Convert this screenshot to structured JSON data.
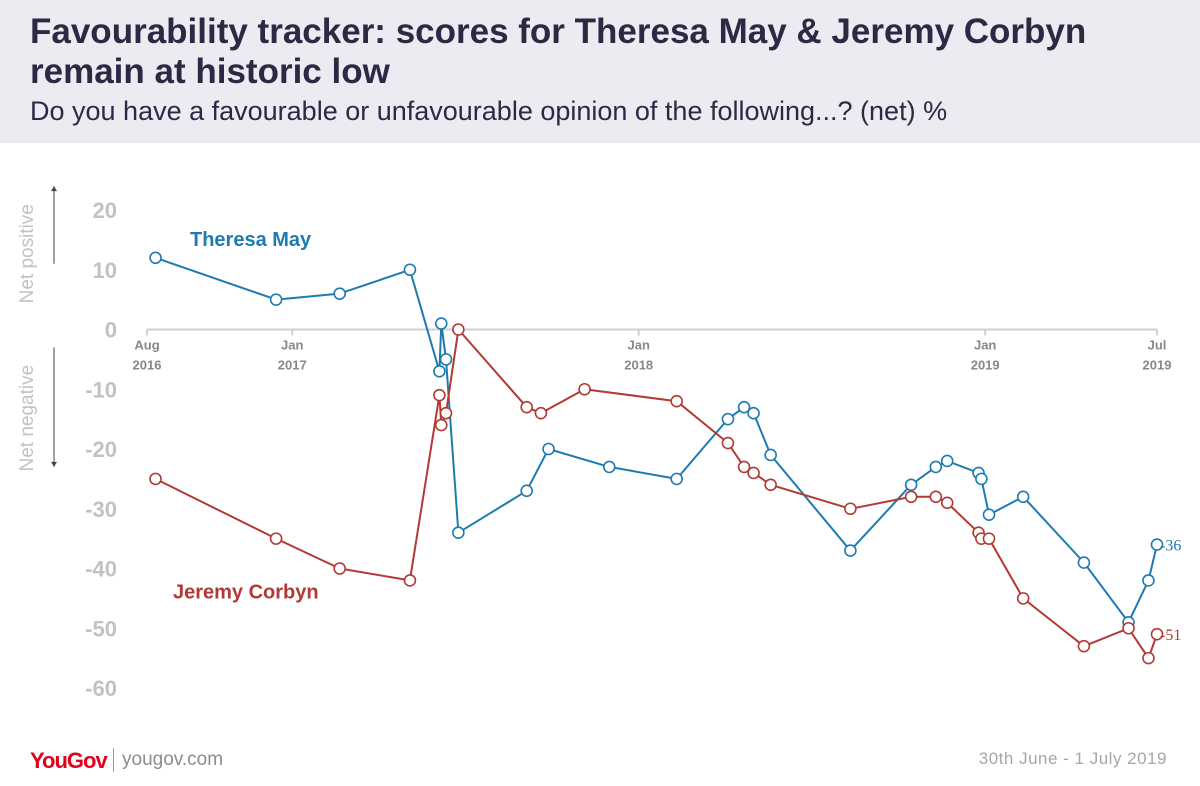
{
  "header": {
    "title": "Favourability tracker: scores for Theresa May & Jeremy Corbyn remain at historic low",
    "subtitle": "Do you have a favourable or unfavourable opinion of the following...? (net) %"
  },
  "footer": {
    "brand": "YouGov",
    "site": "yougov.com",
    "date": "30th June - 1 July 2019"
  },
  "colors": {
    "theresa_may": "#1e7bb0",
    "jeremy_corbyn": "#b23a35",
    "axis_text": "#c2c2c2",
    "tick_text": "#888888"
  },
  "chart_data": {
    "type": "line",
    "y_axis_annotations": [
      "Net positive",
      "Net negative"
    ],
    "ylim": [
      -60,
      20
    ],
    "yticks": [
      20,
      10,
      0,
      -10,
      -20,
      -30,
      -40,
      -50,
      -60
    ],
    "x_range": [
      "2016-08-01",
      "2019-07-01"
    ],
    "x_ticks": [
      {
        "date": "2016-08-01",
        "label": [
          "Aug",
          "2016"
        ]
      },
      {
        "date": "2017-01-01",
        "label": [
          "Jan",
          "2017"
        ]
      },
      {
        "date": "2018-01-01",
        "label": [
          "Jan",
          "2018"
        ]
      },
      {
        "date": "2019-01-01",
        "label": [
          "Jan",
          "2019"
        ]
      },
      {
        "date": "2019-07-01",
        "label": [
          "Jul",
          "2019"
        ]
      }
    ],
    "series": [
      {
        "name": "Theresa May",
        "end_label": "-36",
        "points": [
          {
            "x": "2016-08-10",
            "y": 12
          },
          {
            "x": "2016-12-15",
            "y": 5
          },
          {
            "x": "2017-02-20",
            "y": 6
          },
          {
            "x": "2017-05-05",
            "y": 10
          },
          {
            "x": "2017-06-05",
            "y": -7
          },
          {
            "x": "2017-06-07",
            "y": 1
          },
          {
            "x": "2017-06-12",
            "y": -5
          },
          {
            "x": "2017-06-25",
            "y": -34
          },
          {
            "x": "2017-09-05",
            "y": -27
          },
          {
            "x": "2017-09-28",
            "y": -20
          },
          {
            "x": "2017-12-01",
            "y": -23
          },
          {
            "x": "2018-02-10",
            "y": -25
          },
          {
            "x": "2018-04-05",
            "y": -15
          },
          {
            "x": "2018-04-22",
            "y": -13
          },
          {
            "x": "2018-05-02",
            "y": -14
          },
          {
            "x": "2018-05-20",
            "y": -21
          },
          {
            "x": "2018-08-12",
            "y": -37
          },
          {
            "x": "2018-10-15",
            "y": -26
          },
          {
            "x": "2018-11-10",
            "y": -23
          },
          {
            "x": "2018-11-22",
            "y": -22
          },
          {
            "x": "2018-12-25",
            "y": -24
          },
          {
            "x": "2018-12-28",
            "y": -25
          },
          {
            "x": "2019-01-05",
            "y": -31
          },
          {
            "x": "2019-02-10",
            "y": -28
          },
          {
            "x": "2019-04-15",
            "y": -39
          },
          {
            "x": "2019-06-01",
            "y": -49
          },
          {
            "x": "2019-06-22",
            "y": -42
          },
          {
            "x": "2019-07-01",
            "y": -36
          }
        ]
      },
      {
        "name": "Jeremy Corbyn",
        "end_label": "-51",
        "points": [
          {
            "x": "2016-08-10",
            "y": -25
          },
          {
            "x": "2016-12-15",
            "y": -35
          },
          {
            "x": "2017-02-20",
            "y": -40
          },
          {
            "x": "2017-05-05",
            "y": -42
          },
          {
            "x": "2017-06-05",
            "y": -11
          },
          {
            "x": "2017-06-07",
            "y": -16
          },
          {
            "x": "2017-06-12",
            "y": -14
          },
          {
            "x": "2017-06-25",
            "y": 0
          },
          {
            "x": "2017-09-05",
            "y": -13
          },
          {
            "x": "2017-09-20",
            "y": -14
          },
          {
            "x": "2017-11-05",
            "y": -10
          },
          {
            "x": "2018-02-10",
            "y": -12
          },
          {
            "x": "2018-04-05",
            "y": -19
          },
          {
            "x": "2018-04-22",
            "y": -23
          },
          {
            "x": "2018-05-02",
            "y": -24
          },
          {
            "x": "2018-05-20",
            "y": -26
          },
          {
            "x": "2018-08-12",
            "y": -30
          },
          {
            "x": "2018-10-15",
            "y": -28
          },
          {
            "x": "2018-11-10",
            "y": -28
          },
          {
            "x": "2018-11-22",
            "y": -29
          },
          {
            "x": "2018-12-25",
            "y": -34
          },
          {
            "x": "2018-12-28",
            "y": -35
          },
          {
            "x": "2019-01-05",
            "y": -35
          },
          {
            "x": "2019-02-10",
            "y": -45
          },
          {
            "x": "2019-04-15",
            "y": -53
          },
          {
            "x": "2019-06-01",
            "y": -50
          },
          {
            "x": "2019-06-22",
            "y": -55
          },
          {
            "x": "2019-07-01",
            "y": -51
          }
        ]
      }
    ]
  }
}
